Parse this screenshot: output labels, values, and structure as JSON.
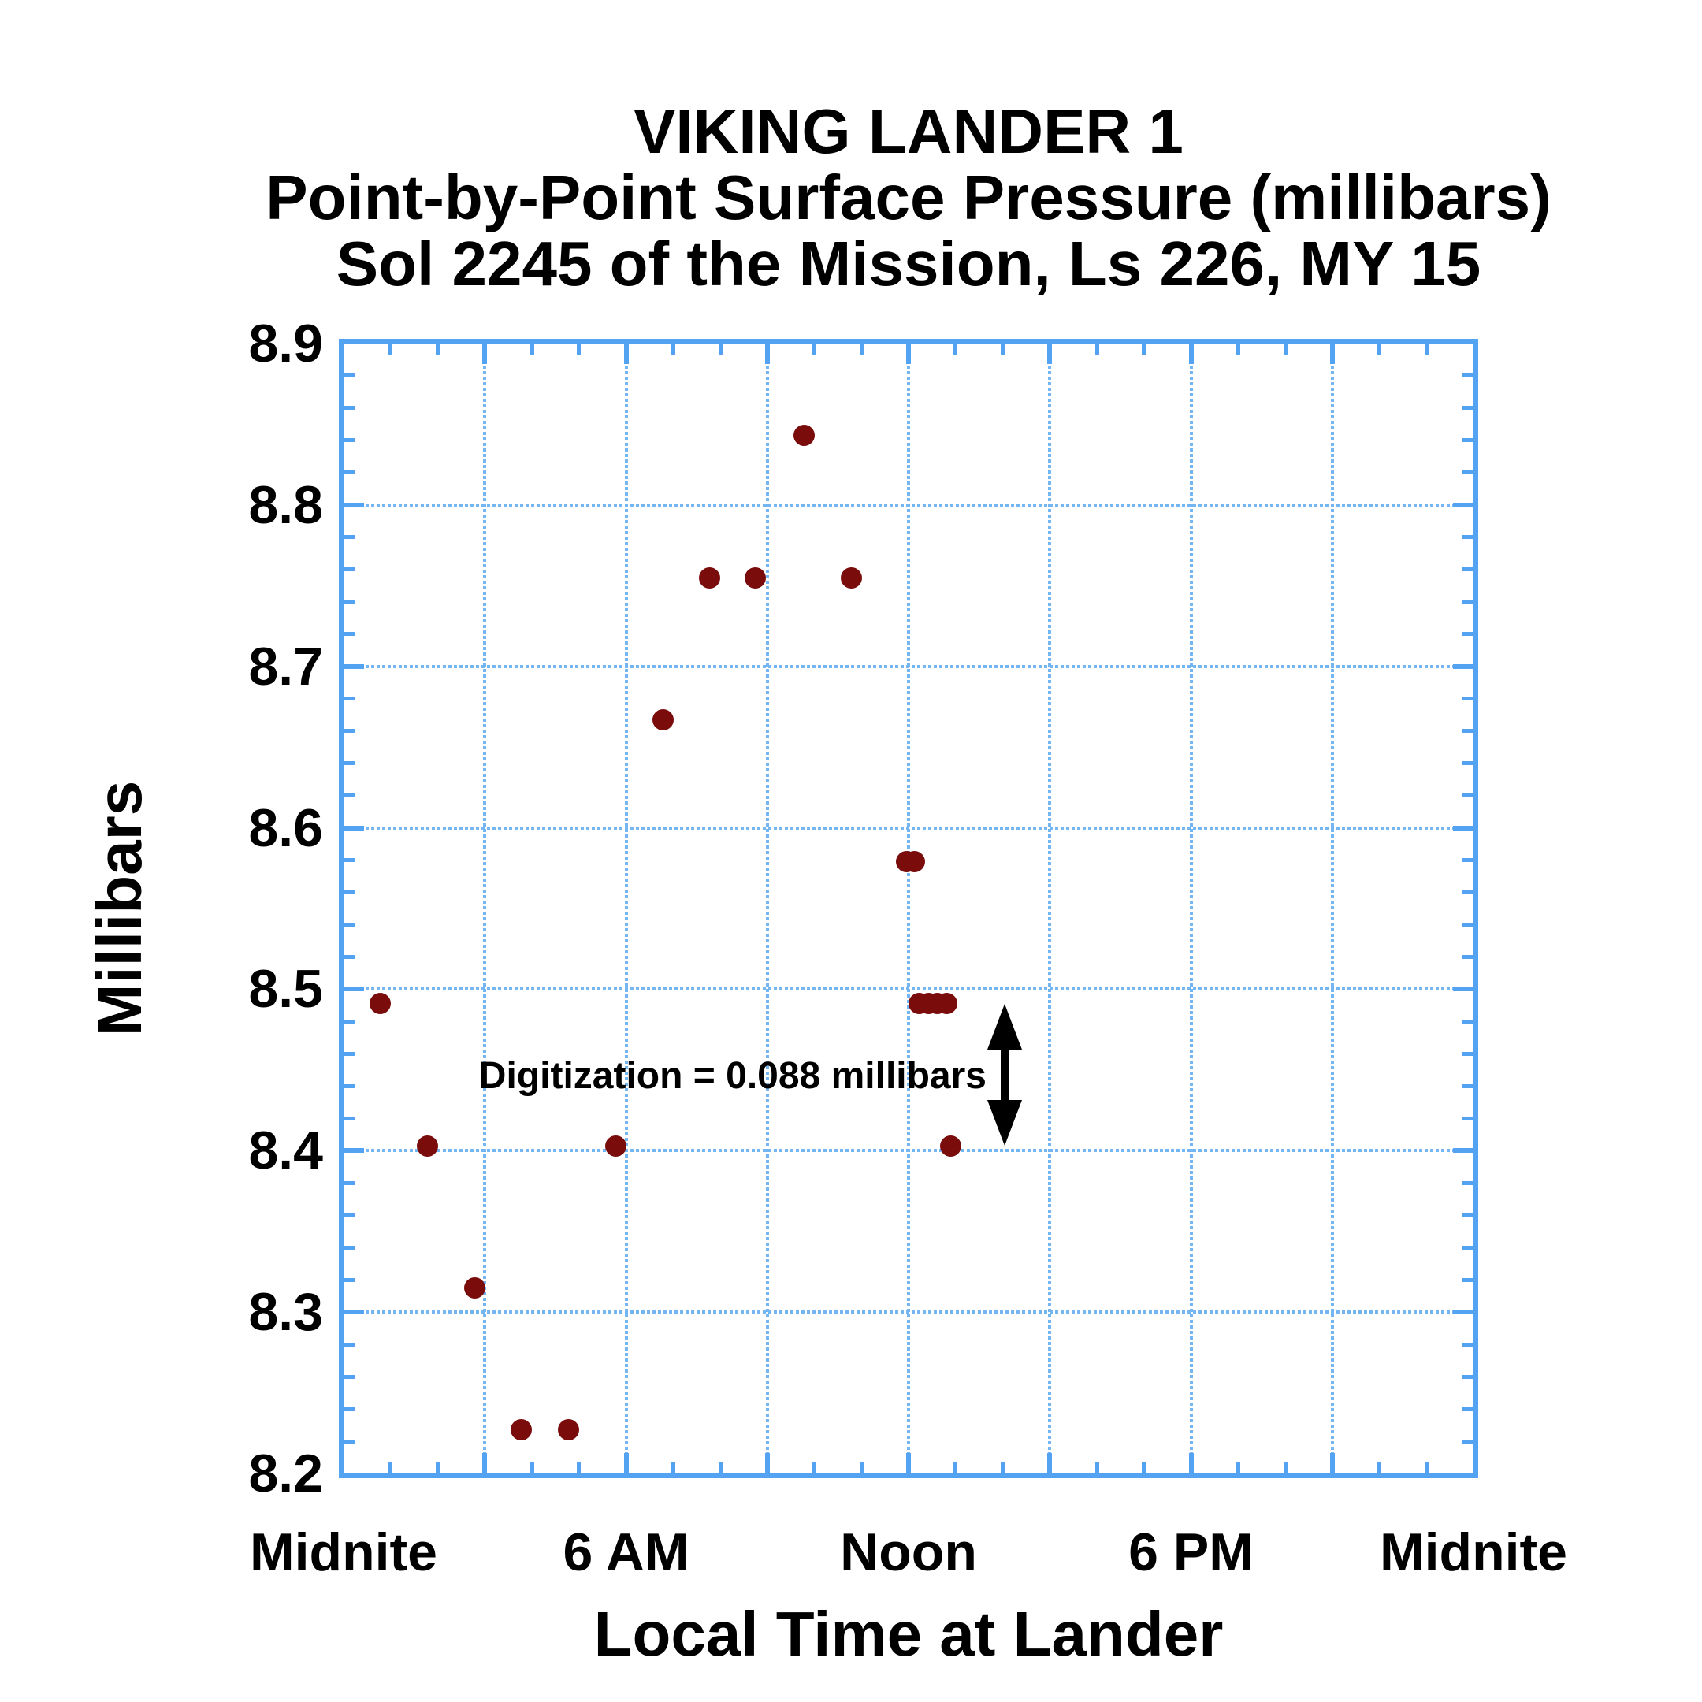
{
  "title": {
    "line1": "VIKING LANDER 1",
    "line2": "Point-by-Point Surface Pressure (millibars)",
    "line3": "Sol 2245 of the Mission, Ls 226, MY 15"
  },
  "axes": {
    "y_label": "Millibars",
    "x_label": "Local Time at Lander"
  },
  "colors": {
    "axis_blue": "#54a3f2",
    "grid_blue": "#74b6f2",
    "point_dark_red": "#7a0c0c",
    "text_black": "#000000",
    "background": "#ffffff"
  },
  "chart_data": {
    "type": "scatter",
    "title": "VIKING LANDER 1",
    "subtitle1": "Point-by-Point Surface Pressure (millibars)",
    "subtitle2": "Sol 2245 of the Mission, Ls 226, MY 15",
    "xlabel": "Local Time at Lander",
    "ylabel": "Millibars",
    "xlim_hours": [
      0,
      24
    ],
    "ylim": [
      8.2,
      8.9
    ],
    "grid": "on",
    "x_major_ticks": [
      {
        "hour": 0,
        "label": "Midnite"
      },
      {
        "hour": 6,
        "label": "6 AM"
      },
      {
        "hour": 12,
        "label": "Noon"
      },
      {
        "hour": 18,
        "label": "6 PM"
      },
      {
        "hour": 24,
        "label": "Midnite"
      }
    ],
    "y_major_ticks": [
      8.2,
      8.3,
      8.4,
      8.5,
      8.6,
      8.7,
      8.8,
      8.9
    ],
    "x_minor_tick_step_hours": 1,
    "y_minor_tick_step": 0.02,
    "x_gridline_hours": [
      3,
      6,
      9,
      12,
      15,
      18,
      21
    ],
    "y_gridline_values": [
      8.3,
      8.4,
      8.5,
      8.6,
      8.7,
      8.8
    ],
    "digitization_step_millibars": 0.088,
    "pressure_quantization_levels": [
      8.227,
      8.315,
      8.403,
      8.491,
      8.579,
      8.667,
      8.755,
      8.843
    ],
    "points": [
      {
        "hour": 0.78,
        "millibars": 8.491
      },
      {
        "hour": 1.78,
        "millibars": 8.403
      },
      {
        "hour": 2.78,
        "millibars": 8.315
      },
      {
        "hour": 3.78,
        "millibars": 8.227
      },
      {
        "hour": 4.78,
        "millibars": 8.227
      },
      {
        "hour": 5.78,
        "millibars": 8.403
      },
      {
        "hour": 6.78,
        "millibars": 8.667
      },
      {
        "hour": 7.78,
        "millibars": 8.755
      },
      {
        "hour": 8.75,
        "millibars": 8.755
      },
      {
        "hour": 9.78,
        "millibars": 8.843
      },
      {
        "hour": 10.78,
        "millibars": 8.755
      },
      {
        "hour": 11.95,
        "millibars": 8.579
      },
      {
        "hour": 12.12,
        "millibars": 8.579
      },
      {
        "hour": 12.22,
        "millibars": 8.491
      },
      {
        "hour": 12.42,
        "millibars": 8.491
      },
      {
        "hour": 12.61,
        "millibars": 8.491
      },
      {
        "hour": 12.81,
        "millibars": 8.491
      },
      {
        "hour": 12.9,
        "millibars": 8.403
      }
    ],
    "annotation": {
      "text": "Digitization = 0.088 millibars",
      "arrow_hour": 14.05,
      "arrow_from_millibars": 8.491,
      "arrow_to_millibars": 8.403
    }
  }
}
